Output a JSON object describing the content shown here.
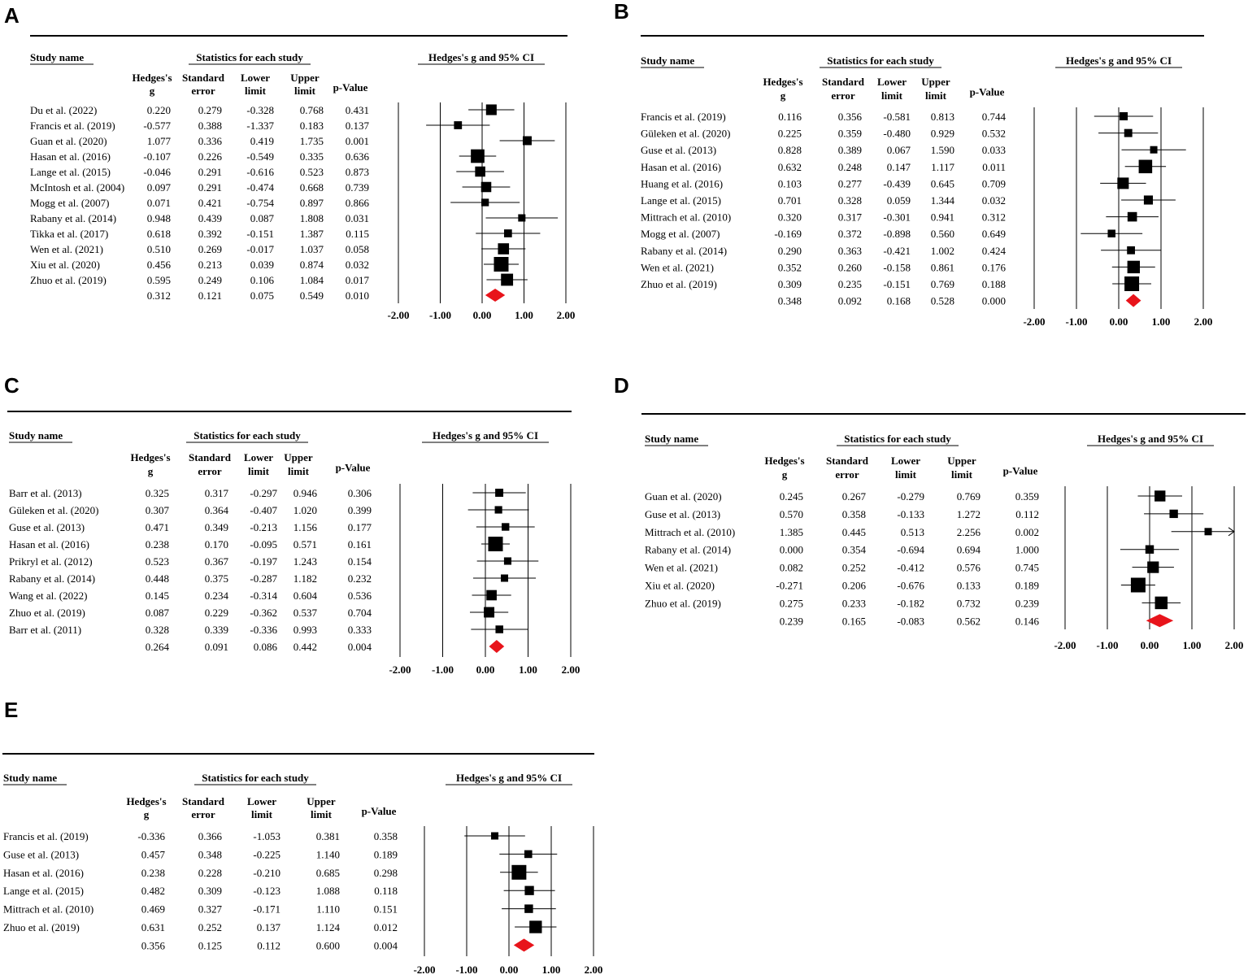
{
  "chart_data": [
    {
      "type": "forest",
      "panel": "A",
      "headers": {
        "study": "Study name",
        "stats": "Statistics for each study",
        "ci": "Hedges's g and 95% CI",
        "g1": "Hedges's",
        "g2": "g",
        "se1": "Standard",
        "se2": "error",
        "ll1": "Lower",
        "ll2": "limit",
        "ul1": "Upper",
        "ul2": "limit",
        "p": "p-Value"
      },
      "studies": [
        {
          "name": "Du et al. (2022)",
          "g": "0.220",
          "se": "0.279",
          "ll": "-0.328",
          "ul": "0.768",
          "p": "0.431"
        },
        {
          "name": "Francis et al. (2019)",
          "g": "-0.577",
          "se": "0.388",
          "ll": "-1.337",
          "ul": "0.183",
          "p": "0.137"
        },
        {
          "name": "Guan et al. (2020)",
          "g": "1.077",
          "se": "0.336",
          "ll": "0.419",
          "ul": "1.735",
          "p": "0.001"
        },
        {
          "name": "Hasan et al. (2016)",
          "g": "-0.107",
          "se": "0.226",
          "ll": "-0.549",
          "ul": "0.335",
          "p": "0.636"
        },
        {
          "name": "Lange et al. (2015)",
          "g": "-0.046",
          "se": "0.291",
          "ll": "-0.616",
          "ul": "0.523",
          "p": "0.873"
        },
        {
          "name": "McIntosh et al. (2004)",
          "g": "0.097",
          "se": "0.291",
          "ll": "-0.474",
          "ul": "0.668",
          "p": "0.739"
        },
        {
          "name": "Mogg et al. (2007)",
          "g": "0.071",
          "se": "0.421",
          "ll": "-0.754",
          "ul": "0.897",
          "p": "0.866"
        },
        {
          "name": "Rabany et al. (2014)",
          "g": "0.948",
          "se": "0.439",
          "ll": "0.087",
          "ul": "1.808",
          "p": "0.031"
        },
        {
          "name": "Tikka et al. (2017)",
          "g": "0.618",
          "se": "0.392",
          "ll": "-0.151",
          "ul": "1.387",
          "p": "0.115"
        },
        {
          "name": "Wen et al. (2021)",
          "g": "0.510",
          "se": "0.269",
          "ll": "-0.017",
          "ul": "1.037",
          "p": "0.058"
        },
        {
          "name": "Xiu et al. (2020)",
          "g": "0.456",
          "se": "0.213",
          "ll": "0.039",
          "ul": "0.874",
          "p": "0.032"
        },
        {
          "name": "Zhuo et al. (2019)",
          "g": "0.595",
          "se": "0.249",
          "ll": "0.106",
          "ul": "1.084",
          "p": "0.017"
        }
      ],
      "summary": {
        "g": "0.312",
        "se": "0.121",
        "ll": "0.075",
        "ul": "0.549",
        "p": "0.010"
      },
      "axis": {
        "min": -2,
        "max": 2,
        "ticks": [
          "-2.00",
          "-1.00",
          "0.00",
          "1.00",
          "2.00"
        ]
      }
    },
    {
      "type": "forest",
      "panel": "B",
      "headers": {
        "study": "Study name",
        "stats": "Statistics for each study",
        "ci": "Hedges's g and 95% CI",
        "g1": "Hedges's",
        "g2": "g",
        "se1": "Standard",
        "se2": "error",
        "ll1": "Lower",
        "ll2": "limit",
        "ul1": "Upper",
        "ul2": "limit",
        "p": "p-Value"
      },
      "studies": [
        {
          "name": "Francis et al. (2019)",
          "g": "0.116",
          "se": "0.356",
          "ll": "-0.581",
          "ul": "0.813",
          "p": "0.744"
        },
        {
          "name": "Güleken et al. (2020)",
          "g": "0.225",
          "se": "0.359",
          "ll": "-0.480",
          "ul": "0.929",
          "p": "0.532"
        },
        {
          "name": "Guse et al. (2013)",
          "g": "0.828",
          "se": "0.389",
          "ll": "0.067",
          "ul": "1.590",
          "p": "0.033"
        },
        {
          "name": "Hasan et al. (2016)",
          "g": "0.632",
          "se": "0.248",
          "ll": "0.147",
          "ul": "1.117",
          "p": "0.011"
        },
        {
          "name": "Huang et al. (2016)",
          "g": "0.103",
          "se": "0.277",
          "ll": "-0.439",
          "ul": "0.645",
          "p": "0.709"
        },
        {
          "name": "Lange et al. (2015)",
          "g": "0.701",
          "se": "0.328",
          "ll": "0.059",
          "ul": "1.344",
          "p": "0.032"
        },
        {
          "name": "Mittrach et al. (2010)",
          "g": "0.320",
          "se": "0.317",
          "ll": "-0.301",
          "ul": "0.941",
          "p": "0.312"
        },
        {
          "name": "Mogg et al. (2007)",
          "g": "-0.169",
          "se": "0.372",
          "ll": "-0.898",
          "ul": "0.560",
          "p": "0.649"
        },
        {
          "name": "Rabany et al. (2014)",
          "g": "0.290",
          "se": "0.363",
          "ll": "-0.421",
          "ul": "1.002",
          "p": "0.424"
        },
        {
          "name": "Wen et al. (2021)",
          "g": "0.352",
          "se": "0.260",
          "ll": "-0.158",
          "ul": "0.861",
          "p": "0.176"
        },
        {
          "name": "Zhuo et al. (2019)",
          "g": "0.309",
          "se": "0.235",
          "ll": "-0.151",
          "ul": "0.769",
          "p": "0.188"
        }
      ],
      "summary": {
        "g": "0.348",
        "se": "0.092",
        "ll": "0.168",
        "ul": "0.528",
        "p": "0.000"
      },
      "axis": {
        "min": -2,
        "max": 2,
        "ticks": [
          "-2.00",
          "-1.00",
          "0.00",
          "1.00",
          "2.00"
        ]
      }
    },
    {
      "type": "forest",
      "panel": "C",
      "headers": {
        "study": "Study name",
        "stats": "Statistics for each study",
        "ci": "Hedges's g and 95% CI",
        "g1": "Hedges's",
        "g2": "g",
        "se1": "Standard",
        "se2": "error",
        "ll1": "Lower",
        "ll2": "limit",
        "ul1": "Upper",
        "ul2": "limit",
        "p": "p-Value"
      },
      "studies": [
        {
          "name": "Barr et al. (2013)",
          "g": "0.325",
          "se": "0.317",
          "ll": "-0.297",
          "ul": "0.946",
          "p": "0.306"
        },
        {
          "name": "Güleken et al. (2020)",
          "g": "0.307",
          "se": "0.364",
          "ll": "-0.407",
          "ul": "1.020",
          "p": "0.399"
        },
        {
          "name": "Guse et al. (2013)",
          "g": "0.471",
          "se": "0.349",
          "ll": "-0.213",
          "ul": "1.156",
          "p": "0.177"
        },
        {
          "name": "Hasan et al. (2016)",
          "g": "0.238",
          "se": "0.170",
          "ll": "-0.095",
          "ul": "0.571",
          "p": "0.161"
        },
        {
          "name": "Prikryl et al. (2012)",
          "g": "0.523",
          "se": "0.367",
          "ll": "-0.197",
          "ul": "1.243",
          "p": "0.154"
        },
        {
          "name": "Rabany et al. (2014)",
          "g": "0.448",
          "se": "0.375",
          "ll": "-0.287",
          "ul": "1.182",
          "p": "0.232"
        },
        {
          "name": "Wang et al. (2022)",
          "g": "0.145",
          "se": "0.234",
          "ll": "-0.314",
          "ul": "0.604",
          "p": "0.536"
        },
        {
          "name": "Zhuo et al. (2019)",
          "g": "0.087",
          "se": "0.229",
          "ll": "-0.362",
          "ul": "0.537",
          "p": "0.704"
        },
        {
          "name": "Barr et al. (2011)",
          "g": "0.328",
          "se": "0.339",
          "ll": "-0.336",
          "ul": "0.993",
          "p": "0.333"
        }
      ],
      "summary": {
        "g": "0.264",
        "se": "0.091",
        "ll": "0.086",
        "ul": "0.442",
        "p": "0.004"
      },
      "axis": {
        "min": -2,
        "max": 2,
        "ticks": [
          "-2.00",
          "-1.00",
          "0.00",
          "1.00",
          "2.00"
        ]
      }
    },
    {
      "type": "forest",
      "panel": "D",
      "headers": {
        "study": "Study name",
        "stats": "Statistics for each study",
        "ci": "Hedges's g and 95% CI",
        "g1": "Hedges's",
        "g2": "g",
        "se1": "Standard",
        "se2": "error",
        "ll1": "Lower",
        "ll2": "limit",
        "ul1": "Upper",
        "ul2": "limit",
        "p": "p-Value"
      },
      "studies": [
        {
          "name": "Guan et al. (2020)",
          "g": "0.245",
          "se": "0.267",
          "ll": "-0.279",
          "ul": "0.769",
          "p": "0.359"
        },
        {
          "name": "Guse et al. (2013)",
          "g": "0.570",
          "se": "0.358",
          "ll": "-0.133",
          "ul": "1.272",
          "p": "0.112"
        },
        {
          "name": "Mittrach et al. (2010)",
          "g": "1.385",
          "se": "0.445",
          "ll": "0.513",
          "ul": "2.256",
          "p": "0.002"
        },
        {
          "name": "Rabany et al. (2014)",
          "g": "0.000",
          "se": "0.354",
          "ll": "-0.694",
          "ul": "0.694",
          "p": "1.000"
        },
        {
          "name": "Wen et al. (2021)",
          "g": "0.082",
          "se": "0.252",
          "ll": "-0.412",
          "ul": "0.576",
          "p": "0.745"
        },
        {
          "name": "Xiu et al. (2020)",
          "g": "-0.271",
          "se": "0.206",
          "ll": "-0.676",
          "ul": "0.133",
          "p": "0.189"
        },
        {
          "name": "Zhuo et al. (2019)",
          "g": "0.275",
          "se": "0.233",
          "ll": "-0.182",
          "ul": "0.732",
          "p": "0.239"
        }
      ],
      "summary": {
        "g": "0.239",
        "se": "0.165",
        "ll": "-0.083",
        "ul": "0.562",
        "p": "0.146"
      },
      "axis": {
        "min": -2,
        "max": 2,
        "ticks": [
          "-2.00",
          "-1.00",
          "0.00",
          "1.00",
          "2.00"
        ]
      }
    },
    {
      "type": "forest",
      "panel": "E",
      "headers": {
        "study": "Study name",
        "stats": "Statistics for each study",
        "ci": "Hedges's g and 95% CI",
        "g1": "Hedges's",
        "g2": "g",
        "se1": "Standard",
        "se2": "error",
        "ll1": "Lower",
        "ll2": "limit",
        "ul1": "Upper",
        "ul2": "limit",
        "p": "p-Value"
      },
      "studies": [
        {
          "name": "Francis et al. (2019)",
          "g": "-0.336",
          "se": "0.366",
          "ll": "-1.053",
          "ul": "0.381",
          "p": "0.358"
        },
        {
          "name": "Guse et al. (2013)",
          "g": "0.457",
          "se": "0.348",
          "ll": "-0.225",
          "ul": "1.140",
          "p": "0.189"
        },
        {
          "name": "Hasan et al. (2016)",
          "g": "0.238",
          "se": "0.228",
          "ll": "-0.210",
          "ul": "0.685",
          "p": "0.298"
        },
        {
          "name": "Lange et al. (2015)",
          "g": "0.482",
          "se": "0.309",
          "ll": "-0.123",
          "ul": "1.088",
          "p": "0.118"
        },
        {
          "name": "Mittrach et al. (2010)",
          "g": "0.469",
          "se": "0.327",
          "ll": "-0.171",
          "ul": "1.110",
          "p": "0.151"
        },
        {
          "name": "Zhuo et al. (2019)",
          "g": "0.631",
          "se": "0.252",
          "ll": "0.137",
          "ul": "1.124",
          "p": "0.012"
        }
      ],
      "summary": {
        "g": "0.356",
        "se": "0.125",
        "ll": "0.112",
        "ul": "0.600",
        "p": "0.004"
      },
      "axis": {
        "min": -2,
        "max": 2,
        "ticks": [
          "-2.00",
          "-1.00",
          "0.00",
          "1.00",
          "2.00"
        ]
      }
    }
  ],
  "colors": {
    "summary_diamond": "#e8141b",
    "marker": "#000000",
    "line": "#000000"
  }
}
